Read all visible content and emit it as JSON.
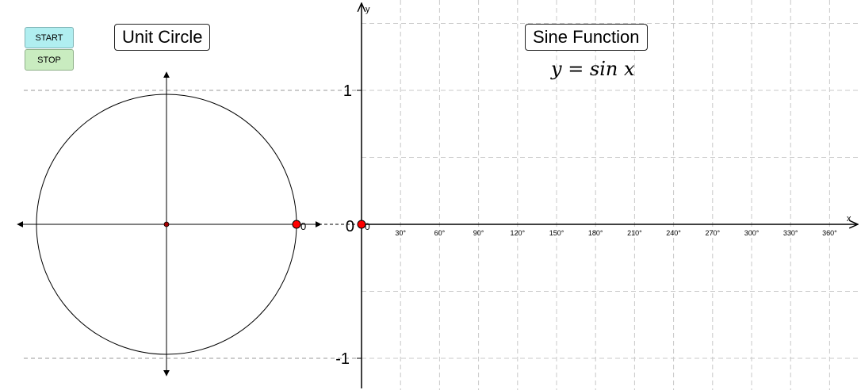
{
  "controls": {
    "start_label": "START",
    "stop_label": "STOP"
  },
  "unit_circle": {
    "title": "Unit Circle",
    "point_label": "0",
    "angle_degrees": 0
  },
  "sine_graph": {
    "title": "Sine Function",
    "formula": "y = sin x",
    "x_axis_label": "x",
    "y_axis_label": "y",
    "origin_label": "0",
    "y_ticks": [
      {
        "value": 1,
        "label": "1"
      },
      {
        "value": 0,
        "label": "0"
      },
      {
        "value": -1,
        "label": "-1"
      }
    ],
    "x_tick_labels": [
      "30°",
      "60°",
      "90°",
      "120°",
      "150°",
      "180°",
      "210°",
      "240°",
      "270°",
      "300°",
      "330°",
      "360°"
    ],
    "point": {
      "x_degrees": 0,
      "y": 0
    }
  },
  "colors": {
    "point": "#ff0000",
    "grid": "#c8c8c8",
    "axis": "#000000",
    "start_button": "#b0eef0",
    "stop_button": "#c9ecc0"
  },
  "chart_data": {
    "type": "line",
    "title": "Sine Function",
    "xlabel": "x",
    "ylabel": "y",
    "x_unit": "degrees",
    "x": [
      0
    ],
    "series": [
      {
        "values": [
          0
        ]
      }
    ],
    "xlim": [
      0,
      380
    ],
    "ylim": [
      -1.2,
      1.6
    ],
    "grid": true
  }
}
